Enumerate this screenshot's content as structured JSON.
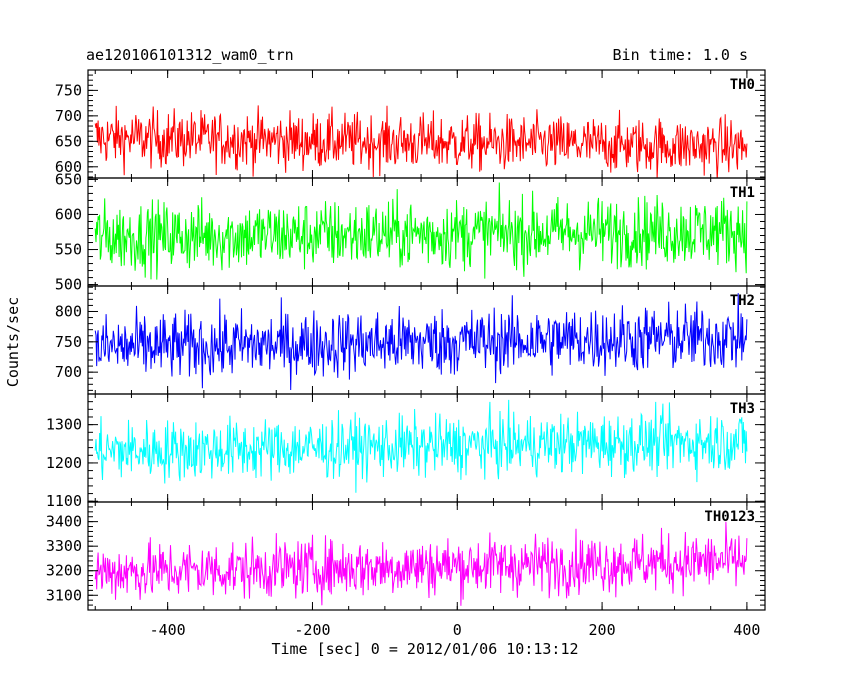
{
  "chart_data": {
    "type": "line",
    "title": "ae120106101312_wam0_trn",
    "bin_time_label": "Bin time: 1.0 s",
    "xlabel": "Time [sec] 0 = 2012/01/06 10:13:12",
    "ylabel": "Counts/sec",
    "xlim": [
      -510,
      425
    ],
    "x_ticks": [
      -400,
      -200,
      0,
      200,
      400
    ],
    "x_range": [
      -500,
      400
    ],
    "panels": [
      {
        "name": "TH0",
        "color": "#ff0000",
        "ylim": [
          578,
          790
        ],
        "y_ticks": [
          600,
          650,
          700,
          750
        ],
        "mean": 647,
        "noise": 28,
        "trend": -0.02
      },
      {
        "name": "TH1",
        "color": "#00ff00",
        "ylim": [
          498,
          652
        ],
        "y_ticks": [
          500,
          550,
          600,
          650
        ],
        "mean": 573,
        "noise": 25,
        "trend": 0.01
      },
      {
        "name": "TH2",
        "color": "#0000ff",
        "ylim": [
          664,
          842
        ],
        "y_ticks": [
          700,
          750,
          800
        ],
        "mean": 750,
        "noise": 28,
        "trend": 0.02
      },
      {
        "name": "TH3",
        "color": "#00ffff",
        "ylim": [
          1098,
          1380
        ],
        "y_ticks": [
          1100,
          1200,
          1300
        ],
        "mean": 1245,
        "noise": 40,
        "trend": 0.03
      },
      {
        "name": "TH0123",
        "color": "#ff00ff",
        "ylim": [
          3040,
          3480
        ],
        "y_ticks": [
          3100,
          3200,
          3300,
          3400
        ],
        "mean": 3220,
        "noise": 60,
        "trend": 0.05
      }
    ]
  }
}
